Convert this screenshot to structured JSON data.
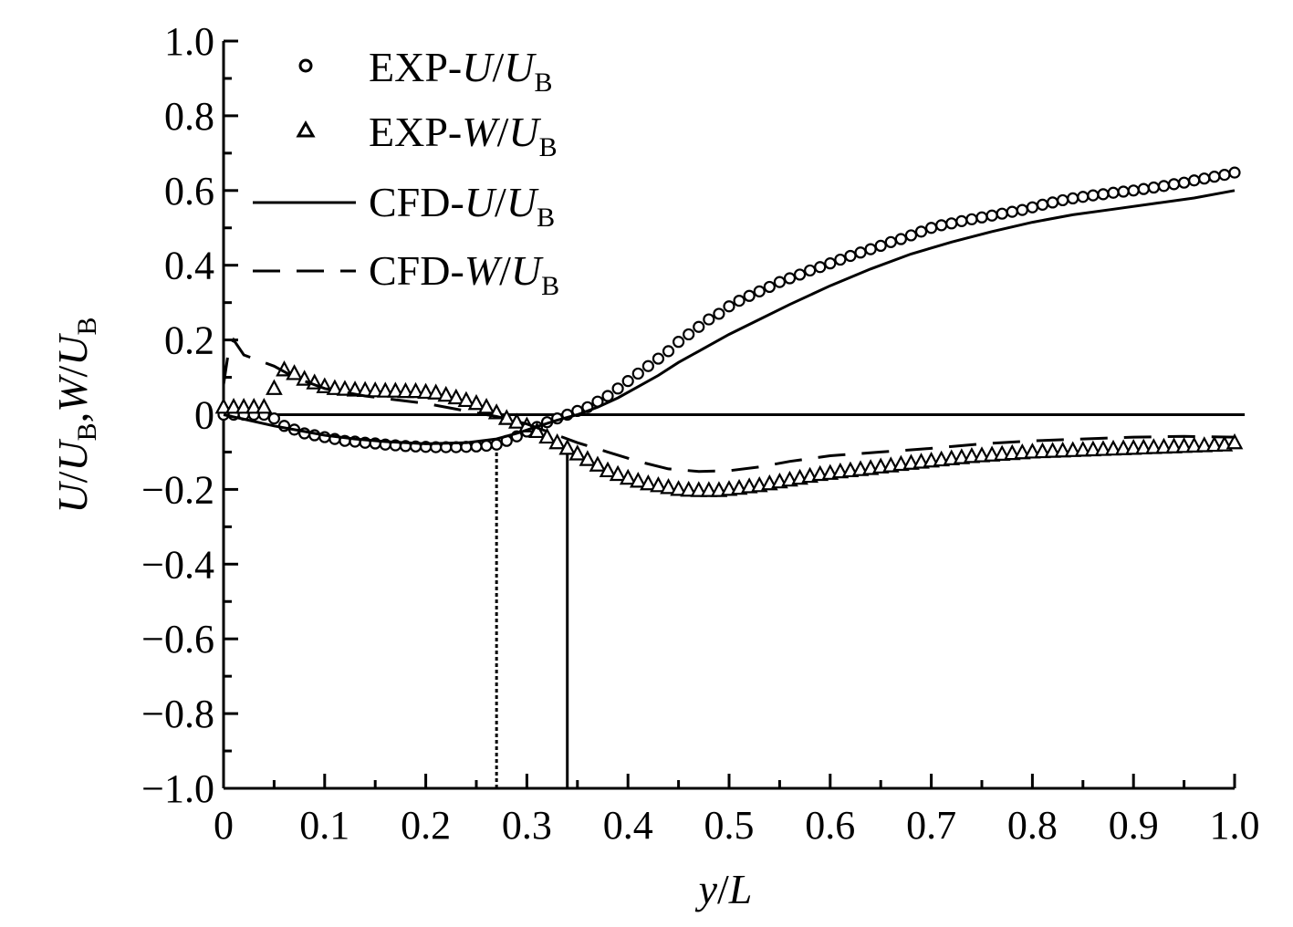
{
  "chart_data": {
    "type": "line",
    "title": "",
    "xlabel": {
      "var": "y",
      "slash": "/",
      "denom": "L"
    },
    "ylabel": {
      "u": "U",
      "ub1_main": "U",
      "ub1_sub": "B",
      "comma": ",",
      "w": "W",
      "slash": "/",
      "ub2_main": "U",
      "ub2_sub": "B"
    },
    "xlim": [
      0,
      1.0
    ],
    "ylim": [
      -1.0,
      1.0
    ],
    "xticks": [
      "0",
      "0.1",
      "0.2",
      "0.3",
      "0.4",
      "0.5",
      "0.6",
      "0.7",
      "0.8",
      "0.9",
      "1.0"
    ],
    "xtick_values": [
      0,
      0.1,
      0.2,
      0.3,
      0.4,
      0.5,
      0.6,
      0.7,
      0.8,
      0.9,
      1.0
    ],
    "yticks": [
      "1.0",
      "0.8",
      "0.6",
      "0.4",
      "0.2",
      "0",
      "−0.2",
      "−0.4",
      "−0.6",
      "−0.8",
      "−1.0"
    ],
    "ytick_values": [
      1.0,
      0.8,
      0.6,
      0.4,
      0.2,
      0,
      -0.2,
      -0.4,
      -0.6,
      -0.8,
      -1.0
    ],
    "reference_lines": [
      {
        "orientation": "horizontal",
        "y": 0,
        "style": "solid",
        "x_range": [
          0,
          1.01
        ]
      },
      {
        "orientation": "vertical",
        "x": 0.27,
        "style": "dotted",
        "y_range": [
          -1.0,
          -0.08
        ]
      },
      {
        "orientation": "vertical",
        "x": 0.34,
        "style": "solid",
        "y_range": [
          -1.0,
          -0.09
        ]
      }
    ],
    "legend": [
      {
        "prefix": "EXP-",
        "var": "U",
        "slash": "/",
        "denom": "U",
        "sub": "B",
        "marker": "circle"
      },
      {
        "prefix": "EXP-",
        "var": "W",
        "slash": "/",
        "denom": "U",
        "sub": "B",
        "marker": "triangle"
      },
      {
        "prefix": "CFD-",
        "var": "U",
        "slash": "/",
        "denom": "U",
        "sub": "B",
        "marker": "solid-line"
      },
      {
        "prefix": "CFD-",
        "var": "W",
        "slash": "/",
        "denom": "U",
        "sub": "B",
        "marker": "dashed-line"
      }
    ],
    "series": [
      {
        "name": "EXP-U/UB",
        "style": "markers",
        "marker": "circle",
        "points": [
          [
            0,
            0
          ],
          [
            0.01,
            0
          ],
          [
            0.02,
            0
          ],
          [
            0.03,
            0
          ],
          [
            0.04,
            0
          ],
          [
            0.05,
            -0.01
          ],
          [
            0.06,
            -0.03
          ],
          [
            0.07,
            -0.04
          ],
          [
            0.08,
            -0.05
          ],
          [
            0.09,
            -0.055
          ],
          [
            0.1,
            -0.06
          ],
          [
            0.11,
            -0.065
          ],
          [
            0.12,
            -0.07
          ],
          [
            0.13,
            -0.072
          ],
          [
            0.14,
            -0.075
          ],
          [
            0.15,
            -0.077
          ],
          [
            0.16,
            -0.08
          ],
          [
            0.17,
            -0.082
          ],
          [
            0.18,
            -0.084
          ],
          [
            0.19,
            -0.085
          ],
          [
            0.2,
            -0.086
          ],
          [
            0.21,
            -0.087
          ],
          [
            0.22,
            -0.087
          ],
          [
            0.23,
            -0.087
          ],
          [
            0.24,
            -0.086
          ],
          [
            0.25,
            -0.085
          ],
          [
            0.26,
            -0.083
          ],
          [
            0.27,
            -0.08
          ],
          [
            0.28,
            -0.07
          ],
          [
            0.29,
            -0.058
          ],
          [
            0.3,
            -0.045
          ],
          [
            0.31,
            -0.033
          ],
          [
            0.32,
            -0.02
          ],
          [
            0.33,
            -0.01
          ],
          [
            0.34,
            0
          ],
          [
            0.35,
            0.01
          ],
          [
            0.36,
            0.02
          ],
          [
            0.37,
            0.035
          ],
          [
            0.38,
            0.05
          ],
          [
            0.39,
            0.07
          ],
          [
            0.4,
            0.09
          ],
          [
            0.41,
            0.11
          ],
          [
            0.42,
            0.13
          ],
          [
            0.43,
            0.15
          ],
          [
            0.44,
            0.17
          ],
          [
            0.45,
            0.195
          ],
          [
            0.46,
            0.215
          ],
          [
            0.47,
            0.235
          ],
          [
            0.48,
            0.255
          ],
          [
            0.49,
            0.27
          ],
          [
            0.5,
            0.29
          ],
          [
            0.51,
            0.305
          ],
          [
            0.52,
            0.318
          ],
          [
            0.53,
            0.33
          ],
          [
            0.54,
            0.342
          ],
          [
            0.55,
            0.355
          ],
          [
            0.56,
            0.365
          ],
          [
            0.57,
            0.375
          ],
          [
            0.58,
            0.386
          ],
          [
            0.59,
            0.395
          ],
          [
            0.6,
            0.405
          ],
          [
            0.61,
            0.415
          ],
          [
            0.62,
            0.425
          ],
          [
            0.63,
            0.434
          ],
          [
            0.64,
            0.443
          ],
          [
            0.65,
            0.452
          ],
          [
            0.66,
            0.462
          ],
          [
            0.67,
            0.47
          ],
          [
            0.68,
            0.48
          ],
          [
            0.69,
            0.49
          ],
          [
            0.7,
            0.5
          ],
          [
            0.71,
            0.507
          ],
          [
            0.72,
            0.512
          ],
          [
            0.73,
            0.518
          ],
          [
            0.74,
            0.523
          ],
          [
            0.75,
            0.528
          ],
          [
            0.76,
            0.533
          ],
          [
            0.77,
            0.538
          ],
          [
            0.78,
            0.543
          ],
          [
            0.79,
            0.548
          ],
          [
            0.8,
            0.555
          ],
          [
            0.81,
            0.562
          ],
          [
            0.82,
            0.568
          ],
          [
            0.83,
            0.574
          ],
          [
            0.84,
            0.579
          ],
          [
            0.85,
            0.583
          ],
          [
            0.86,
            0.587
          ],
          [
            0.87,
            0.59
          ],
          [
            0.88,
            0.594
          ],
          [
            0.89,
            0.597
          ],
          [
            0.9,
            0.6
          ],
          [
            0.91,
            0.604
          ],
          [
            0.92,
            0.608
          ],
          [
            0.93,
            0.612
          ],
          [
            0.94,
            0.617
          ],
          [
            0.95,
            0.621
          ],
          [
            0.96,
            0.627
          ],
          [
            0.97,
            0.632
          ],
          [
            0.98,
            0.637
          ],
          [
            0.99,
            0.642
          ],
          [
            1.0,
            0.648
          ]
        ]
      },
      {
        "name": "EXP-W/UB",
        "style": "markers",
        "marker": "triangle",
        "points": [
          [
            0,
            0.02
          ],
          [
            0.01,
            0.02
          ],
          [
            0.02,
            0.02
          ],
          [
            0.03,
            0.02
          ],
          [
            0.04,
            0.02
          ],
          [
            0.05,
            0.07
          ],
          [
            0.06,
            0.12
          ],
          [
            0.07,
            0.11
          ],
          [
            0.08,
            0.095
          ],
          [
            0.09,
            0.085
          ],
          [
            0.1,
            0.075
          ],
          [
            0.11,
            0.07
          ],
          [
            0.12,
            0.068
          ],
          [
            0.13,
            0.066
          ],
          [
            0.14,
            0.065
          ],
          [
            0.15,
            0.064
          ],
          [
            0.16,
            0.063
          ],
          [
            0.17,
            0.063
          ],
          [
            0.18,
            0.062
          ],
          [
            0.19,
            0.062
          ],
          [
            0.2,
            0.06
          ],
          [
            0.21,
            0.058
          ],
          [
            0.22,
            0.052
          ],
          [
            0.23,
            0.045
          ],
          [
            0.24,
            0.038
          ],
          [
            0.25,
            0.03
          ],
          [
            0.26,
            0.02
          ],
          [
            0.27,
            0.005
          ],
          [
            0.28,
            -0.01
          ],
          [
            0.29,
            -0.02
          ],
          [
            0.3,
            -0.03
          ],
          [
            0.31,
            -0.045
          ],
          [
            0.32,
            -0.06
          ],
          [
            0.33,
            -0.075
          ],
          [
            0.34,
            -0.09
          ],
          [
            0.35,
            -0.105
          ],
          [
            0.36,
            -0.12
          ],
          [
            0.37,
            -0.135
          ],
          [
            0.38,
            -0.15
          ],
          [
            0.39,
            -0.16
          ],
          [
            0.4,
            -0.17
          ],
          [
            0.41,
            -0.178
          ],
          [
            0.42,
            -0.185
          ],
          [
            0.43,
            -0.19
          ],
          [
            0.44,
            -0.195
          ],
          [
            0.45,
            -0.2
          ],
          [
            0.46,
            -0.202
          ],
          [
            0.47,
            -0.203
          ],
          [
            0.48,
            -0.203
          ],
          [
            0.49,
            -0.203
          ],
          [
            0.5,
            -0.2
          ],
          [
            0.51,
            -0.197
          ],
          [
            0.52,
            -0.193
          ],
          [
            0.53,
            -0.19
          ],
          [
            0.54,
            -0.185
          ],
          [
            0.55,
            -0.18
          ],
          [
            0.56,
            -0.175
          ],
          [
            0.57,
            -0.17
          ],
          [
            0.58,
            -0.165
          ],
          [
            0.59,
            -0.16
          ],
          [
            0.6,
            -0.157
          ],
          [
            0.61,
            -0.153
          ],
          [
            0.62,
            -0.15
          ],
          [
            0.63,
            -0.147
          ],
          [
            0.64,
            -0.144
          ],
          [
            0.65,
            -0.14
          ],
          [
            0.66,
            -0.137
          ],
          [
            0.67,
            -0.133
          ],
          [
            0.68,
            -0.13
          ],
          [
            0.69,
            -0.127
          ],
          [
            0.7,
            -0.124
          ],
          [
            0.71,
            -0.121
          ],
          [
            0.72,
            -0.118
          ],
          [
            0.73,
            -0.115
          ],
          [
            0.74,
            -0.112
          ],
          [
            0.75,
            -0.11
          ],
          [
            0.76,
            -0.108
          ],
          [
            0.77,
            -0.106
          ],
          [
            0.78,
            -0.104
          ],
          [
            0.79,
            -0.102
          ],
          [
            0.8,
            -0.1
          ],
          [
            0.81,
            -0.099
          ],
          [
            0.82,
            -0.098
          ],
          [
            0.83,
            -0.097
          ],
          [
            0.84,
            -0.096
          ],
          [
            0.85,
            -0.095
          ],
          [
            0.86,
            -0.094
          ],
          [
            0.87,
            -0.093
          ],
          [
            0.88,
            -0.092
          ],
          [
            0.89,
            -0.091
          ],
          [
            0.9,
            -0.09
          ],
          [
            0.91,
            -0.089
          ],
          [
            0.92,
            -0.088
          ],
          [
            0.93,
            -0.087
          ],
          [
            0.94,
            -0.086
          ],
          [
            0.95,
            -0.085
          ],
          [
            0.96,
            -0.084
          ],
          [
            0.97,
            -0.083
          ],
          [
            0.98,
            -0.082
          ],
          [
            0.99,
            -0.081
          ],
          [
            1.0,
            -0.075
          ]
        ]
      },
      {
        "name": "CFD-U/UB",
        "style": "solid",
        "points": [
          [
            0,
            0
          ],
          [
            0.02,
            -0.012
          ],
          [
            0.05,
            -0.03
          ],
          [
            0.08,
            -0.045
          ],
          [
            0.1,
            -0.055
          ],
          [
            0.13,
            -0.065
          ],
          [
            0.16,
            -0.072
          ],
          [
            0.2,
            -0.078
          ],
          [
            0.24,
            -0.075
          ],
          [
            0.27,
            -0.065
          ],
          [
            0.29,
            -0.05
          ],
          [
            0.31,
            -0.032
          ],
          [
            0.33,
            -0.015
          ],
          [
            0.35,
            0
          ],
          [
            0.37,
            0.02
          ],
          [
            0.39,
            0.045
          ],
          [
            0.41,
            0.075
          ],
          [
            0.43,
            0.105
          ],
          [
            0.45,
            0.14
          ],
          [
            0.47,
            0.17
          ],
          [
            0.5,
            0.215
          ],
          [
            0.53,
            0.255
          ],
          [
            0.56,
            0.295
          ],
          [
            0.6,
            0.345
          ],
          [
            0.64,
            0.39
          ],
          [
            0.68,
            0.43
          ],
          [
            0.72,
            0.462
          ],
          [
            0.76,
            0.49
          ],
          [
            0.8,
            0.515
          ],
          [
            0.84,
            0.535
          ],
          [
            0.88,
            0.55
          ],
          [
            0.92,
            0.565
          ],
          [
            0.96,
            0.58
          ],
          [
            1.0,
            0.6
          ]
        ]
      },
      {
        "name": "CFD-W/UB",
        "style": "dashed",
        "points": [
          [
            0,
            0.08
          ],
          [
            0.005,
            0.17
          ],
          [
            0.01,
            0.2
          ],
          [
            0.02,
            0.16
          ],
          [
            0.05,
            0.13
          ],
          [
            0.07,
            0.1
          ],
          [
            0.1,
            0.07
          ],
          [
            0.14,
            0.05
          ],
          [
            0.2,
            0.03
          ],
          [
            0.24,
            0.01
          ],
          [
            0.27,
            -0.005
          ],
          [
            0.3,
            -0.025
          ],
          [
            0.33,
            -0.055
          ],
          [
            0.35,
            -0.075
          ],
          [
            0.38,
            -0.1
          ],
          [
            0.41,
            -0.125
          ],
          [
            0.44,
            -0.145
          ],
          [
            0.47,
            -0.152
          ],
          [
            0.5,
            -0.15
          ],
          [
            0.53,
            -0.14
          ],
          [
            0.56,
            -0.125
          ],
          [
            0.6,
            -0.11
          ],
          [
            0.65,
            -0.1
          ],
          [
            0.7,
            -0.09
          ],
          [
            0.75,
            -0.078
          ],
          [
            0.8,
            -0.07
          ],
          [
            0.85,
            -0.065
          ],
          [
            0.9,
            -0.06
          ],
          [
            0.95,
            -0.058
          ],
          [
            1.0,
            -0.06
          ]
        ]
      }
    ]
  }
}
